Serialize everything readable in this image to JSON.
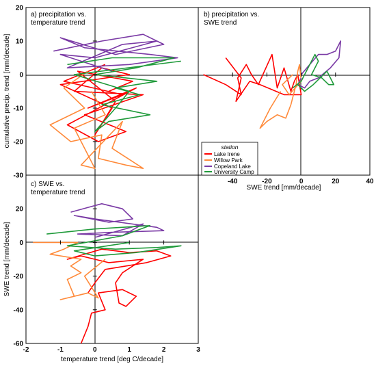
{
  "chart_data": [
    {
      "type": "line",
      "panel_label": "a) precipitation vs.\ntemperature trend",
      "xlabel": "",
      "ylabel": "cumulative precip. trend [mm/decade]",
      "xlim": [
        -2,
        3
      ],
      "ylim": [
        -30,
        20
      ],
      "y_ticks": [
        20,
        10,
        0,
        -10,
        -20,
        -30
      ],
      "series": [
        {
          "name": "Lake Irene",
          "color": "#ff0000",
          "points": [
            [
              0.3,
              3
            ],
            [
              -0.9,
              -2
            ],
            [
              0.8,
              -6
            ],
            [
              -0.2,
              -10
            ],
            [
              1.2,
              -4
            ],
            [
              -0.8,
              -15
            ],
            [
              0.1,
              -20
            ],
            [
              0.9,
              -17
            ],
            [
              -0.3,
              -12
            ],
            [
              1.4,
              -6
            ],
            [
              -0.6,
              -5
            ],
            [
              0.2,
              2
            ],
            [
              1.0,
              0
            ],
            [
              -1.0,
              -3
            ],
            [
              0.5,
              -10
            ],
            [
              0.0,
              -18
            ],
            [
              0.6,
              -8
            ],
            [
              -0.5,
              1
            ],
            [
              1.1,
              -2
            ],
            [
              0.4,
              -5
            ]
          ]
        },
        {
          "name": "Willow Park",
          "color": "#ff8a3a",
          "points": [
            [
              -0.2,
              1
            ],
            [
              -0.9,
              -4
            ],
            [
              -0.3,
              -10
            ],
            [
              -1.3,
              -15
            ],
            [
              -0.7,
              -20
            ],
            [
              0.2,
              -18
            ],
            [
              0.1,
              -25
            ],
            [
              0.9,
              -27
            ],
            [
              1.4,
              -28
            ],
            [
              0.5,
              -22
            ],
            [
              0.8,
              -14
            ],
            [
              -0.4,
              -27
            ],
            [
              0.0,
              -28
            ],
            [
              -0.6,
              -16
            ],
            [
              0.3,
              -12
            ],
            [
              -0.1,
              -5
            ]
          ]
        },
        {
          "name": "Copeland Lake",
          "color": "#7a3aa5",
          "points": [
            [
              -1.2,
              7
            ],
            [
              0.2,
              10
            ],
            [
              1.4,
              12
            ],
            [
              2.0,
              9
            ],
            [
              0.6,
              6
            ],
            [
              -1.0,
              11
            ],
            [
              -0.3,
              8
            ],
            [
              1.6,
              6
            ],
            [
              2.4,
              5
            ],
            [
              1.0,
              3
            ],
            [
              -0.8,
              2
            ],
            [
              0.8,
              9
            ],
            [
              1.8,
              10
            ],
            [
              0.0,
              5
            ],
            [
              -1.0,
              6
            ],
            [
              0.5,
              1
            ]
          ]
        },
        {
          "name": "University Camp",
          "color": "#1f9a3a",
          "points": [
            [
              -0.8,
              3
            ],
            [
              0.5,
              5
            ],
            [
              2.3,
              5
            ],
            [
              1.2,
              2
            ],
            [
              0.0,
              0
            ],
            [
              1.8,
              -2
            ],
            [
              0.6,
              -4
            ],
            [
              1.3,
              -6
            ],
            [
              0.2,
              -9
            ],
            [
              1.6,
              -12
            ],
            [
              0.4,
              -14
            ],
            [
              0.0,
              -17
            ],
            [
              0.6,
              -10
            ],
            [
              1.0,
              -5
            ],
            [
              -0.6,
              0
            ],
            [
              2.5,
              4
            ]
          ]
        }
      ]
    },
    {
      "type": "line",
      "panel_label": "b) precipitation vs.\nSWE trend",
      "xlabel": "SWE trend [mm/decade]",
      "ylabel": "",
      "xlim": [
        -60,
        40
      ],
      "ylim": [
        -30,
        20
      ],
      "x_ticks": [
        -40,
        -20,
        0,
        20,
        40
      ],
      "series": [
        {
          "name": "Lake Irene",
          "color": "#ff0000",
          "points": [
            [
              -57,
              0
            ],
            [
              -44,
              -3
            ],
            [
              -35,
              -6
            ],
            [
              -37,
              -1
            ],
            [
              -32,
              3
            ],
            [
              -29,
              0
            ],
            [
              -25,
              -3
            ],
            [
              -17,
              6
            ],
            [
              -14,
              -4
            ],
            [
              -10,
              2
            ],
            [
              -6,
              -5
            ],
            [
              -4,
              -2
            ],
            [
              -2,
              0
            ],
            [
              0,
              -6
            ],
            [
              -10,
              -6
            ],
            [
              -24,
              -3
            ],
            [
              -30,
              -2
            ],
            [
              -38,
              -8
            ],
            [
              -35,
              -1
            ],
            [
              -44,
              5
            ]
          ]
        },
        {
          "name": "Willow Park",
          "color": "#ff8a3a",
          "points": [
            [
              -12,
              -5
            ],
            [
              -18,
              -10
            ],
            [
              -24,
              -16
            ],
            [
              -20,
              -14
            ],
            [
              -14,
              -12
            ],
            [
              -9,
              -13
            ],
            [
              -6,
              -9
            ],
            [
              -3,
              -3
            ],
            [
              -2,
              1
            ],
            [
              -1,
              3
            ],
            [
              0,
              -2
            ],
            [
              -7,
              -6
            ],
            [
              -11,
              -3
            ],
            [
              -5,
              0
            ]
          ]
        },
        {
          "name": "Copeland Lake",
          "color": "#7a3aa5",
          "points": [
            [
              0,
              0
            ],
            [
              5,
              3
            ],
            [
              10,
              6
            ],
            [
              15,
              6
            ],
            [
              20,
              7
            ],
            [
              23,
              10
            ],
            [
              22,
              5
            ],
            [
              17,
              2
            ],
            [
              10,
              -1
            ],
            [
              5,
              -2
            ],
            [
              2,
              -4
            ],
            [
              -2,
              -3
            ],
            [
              0,
              -1
            ]
          ]
        },
        {
          "name": "University Camp",
          "color": "#1f9a3a",
          "points": [
            [
              -5,
              -4
            ],
            [
              0,
              -2
            ],
            [
              4,
              2
            ],
            [
              8,
              6
            ],
            [
              10,
              4
            ],
            [
              6,
              0
            ],
            [
              12,
              -1
            ],
            [
              16,
              -3
            ],
            [
              19,
              -3
            ],
            [
              15,
              1
            ],
            [
              7,
              -3
            ],
            [
              2,
              -5
            ],
            [
              -2,
              -3
            ]
          ]
        }
      ]
    },
    {
      "type": "line",
      "panel_label": "c) SWE vs.\ntemperature trend",
      "xlabel": "temperature trend [deg C/decade]",
      "ylabel": "SWE trend [mm/decade]",
      "xlim": [
        -2,
        3
      ],
      "ylim": [
        -60,
        40
      ],
      "x_ticks": [
        -2,
        -1,
        0,
        1,
        2,
        3
      ],
      "y_ticks": [
        20,
        0,
        -20,
        -40,
        -60
      ],
      "series": [
        {
          "name": "Lake Irene",
          "color": "#ff0000",
          "points": [
            [
              -0.4,
              -60
            ],
            [
              -0.2,
              -50
            ],
            [
              -0.1,
              -42
            ],
            [
              0.3,
              -40
            ],
            [
              0.1,
              -30
            ],
            [
              0.8,
              -28
            ],
            [
              1.2,
              -32
            ],
            [
              0.9,
              -38
            ],
            [
              0.7,
              -36
            ],
            [
              0.6,
              -24
            ],
            [
              0.8,
              -18
            ],
            [
              1.4,
              -10
            ],
            [
              0.4,
              -12
            ],
            [
              -0.4,
              -8
            ],
            [
              -0.8,
              -10
            ],
            [
              0.2,
              -4
            ],
            [
              1.0,
              -6
            ],
            [
              1.8,
              -5
            ],
            [
              2.2,
              -8
            ],
            [
              1.5,
              -12
            ],
            [
              0.3,
              -16
            ],
            [
              0.0,
              -24
            ],
            [
              -0.2,
              -30
            ]
          ]
        },
        {
          "name": "Willow Park",
          "color": "#ff8a3a",
          "points": [
            [
              -1.8,
              0
            ],
            [
              -0.5,
              0
            ],
            [
              -0.9,
              -4
            ],
            [
              -1.3,
              -7
            ],
            [
              -0.4,
              -10
            ],
            [
              -0.7,
              -14
            ],
            [
              -0.4,
              -18
            ],
            [
              -0.8,
              -22
            ],
            [
              -0.6,
              -32
            ],
            [
              -1.0,
              -34
            ],
            [
              -0.2,
              -30
            ],
            [
              0.1,
              -33
            ],
            [
              -0.3,
              -20
            ],
            [
              0.3,
              -10
            ]
          ]
        },
        {
          "name": "Copeland Lake",
          "color": "#7a3aa5",
          "points": [
            [
              -0.7,
              18
            ],
            [
              0.2,
              23
            ],
            [
              0.8,
              20
            ],
            [
              1.1,
              14
            ],
            [
              0.4,
              12
            ],
            [
              -0.6,
              16
            ],
            [
              0.0,
              14
            ],
            [
              1.8,
              9
            ],
            [
              2.0,
              7
            ],
            [
              0.5,
              6
            ],
            [
              -0.5,
              5
            ],
            [
              0.8,
              4
            ],
            [
              1.4,
              11
            ],
            [
              0.0,
              3
            ]
          ]
        },
        {
          "name": "University Camp",
          "color": "#1f9a3a",
          "points": [
            [
              -1.4,
              5
            ],
            [
              0.0,
              8
            ],
            [
              1.6,
              10
            ],
            [
              0.8,
              4
            ],
            [
              -0.8,
              -2
            ],
            [
              0.6,
              -4
            ],
            [
              1.8,
              -3
            ],
            [
              2.5,
              -2
            ],
            [
              1.2,
              -6
            ],
            [
              0.0,
              -8
            ],
            [
              -0.6,
              -5
            ],
            [
              1.0,
              0
            ]
          ]
        }
      ]
    }
  ],
  "legend": {
    "title": "station",
    "entries": [
      {
        "label": "Lake Irene",
        "color": "#ff0000"
      },
      {
        "label": "Willow Park",
        "color": "#ff8a3a"
      },
      {
        "label": "Copeland Lake",
        "color": "#7a3aa5"
      },
      {
        "label": "University Camp",
        "color": "#1f9a3a"
      }
    ]
  }
}
